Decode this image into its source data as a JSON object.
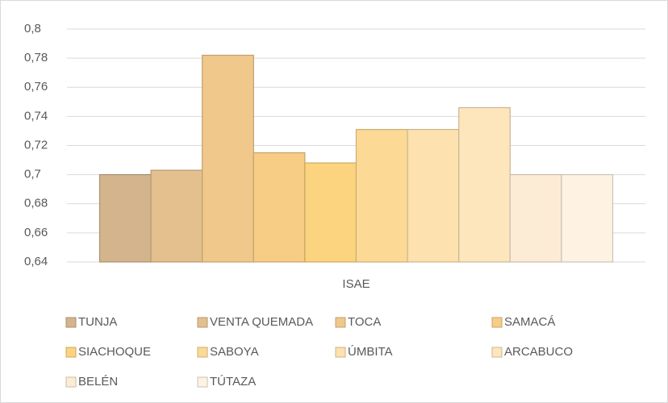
{
  "chart_data": {
    "type": "bar",
    "categories": [
      "ISAE"
    ],
    "series": [
      {
        "name": "TUNJA",
        "color": "#d4b48c",
        "values": [
          0.7
        ]
      },
      {
        "name": "VENTA QUEMADA",
        "color": "#e4c08f",
        "values": [
          0.703
        ]
      },
      {
        "name": "TOCA",
        "color": "#f0c88c",
        "values": [
          0.782
        ]
      },
      {
        "name": "SAMACÁ",
        "color": "#f7cd86",
        "values": [
          0.715
        ]
      },
      {
        "name": "SIACHOQUE",
        "color": "#fcd37f",
        "values": [
          0.708
        ]
      },
      {
        "name": "SABOYA",
        "color": "#fcda95",
        "values": [
          0.731
        ]
      },
      {
        "name": "ÚMBITA",
        "color": "#fde1ae",
        "values": [
          0.731
        ]
      },
      {
        "name": "ARCABUCO",
        "color": "#fde5bc",
        "values": [
          0.746
        ]
      },
      {
        "name": "BELÉN",
        "color": "#fdecd5",
        "values": [
          0.7
        ]
      },
      {
        "name": "TÚTAZA",
        "color": "#fef2e3",
        "values": [
          0.7
        ]
      }
    ],
    "ylim": [
      0.64,
      0.8
    ],
    "yticks": [
      {
        "value": 0.64,
        "label": "0,64"
      },
      {
        "value": 0.66,
        "label": "0,66"
      },
      {
        "value": 0.68,
        "label": "0,68"
      },
      {
        "value": 0.7,
        "label": "0,7"
      },
      {
        "value": 0.72,
        "label": "0,72"
      },
      {
        "value": 0.74,
        "label": "0,74"
      },
      {
        "value": 0.76,
        "label": "0,76"
      },
      {
        "value": 0.78,
        "label": "0,78"
      },
      {
        "value": 0.8,
        "label": "0,8"
      }
    ],
    "grid": true
  }
}
